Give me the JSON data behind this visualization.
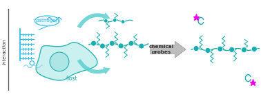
{
  "background_color": "#ffffff",
  "teal": "#1aadad",
  "teal_light": "#5ecece",
  "teal_vlight": "#aae4e4",
  "teal_fill": "#c5efef",
  "blue": "#3bbce8",
  "blue_light": "#90d8f0",
  "magenta": "#ee00ee",
  "gray": "#b8b8b8",
  "gray_dark": "#909090",
  "gray_text": "#444444",
  "interaction_label": "interaction",
  "pathogen_label": "pathogen",
  "host_label": "host",
  "probes_label": "chemical\nprobes",
  "figsize": [
    3.78,
    1.5
  ],
  "dpi": 100
}
